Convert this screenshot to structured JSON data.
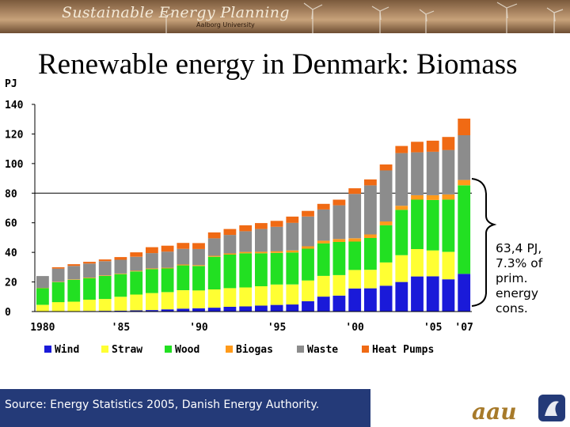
{
  "banner": {
    "title": "Sustainable Energy Planning",
    "subtitle": "Aalborg University"
  },
  "slide": {
    "title": "Renewable energy in Denmark: Biomass",
    "note": "63,4 PJ, 7.3% of prim. energy cons.",
    "source": "Source: Energy Statistics 2005, Danish Energy Authority."
  },
  "logo_text": "aau",
  "colors": {
    "banner": "#a88360",
    "footer": "#243a78",
    "wind": "#1a1ad9",
    "straw": "#ffff33",
    "wood": "#22e022",
    "biogas": "#ff9a1a",
    "waste": "#8c8c8c",
    "heat_pumps": "#f06a14"
  },
  "chart_data": {
    "type": "bar",
    "stacked": true,
    "ylabel": "PJ",
    "xlabel": "",
    "ylim": [
      0,
      140
    ],
    "yticks": [
      0,
      20,
      40,
      60,
      80,
      100,
      120,
      140
    ],
    "reference_line": 80,
    "grid": false,
    "legend_position": "bottom",
    "categories": [
      "1980",
      "1981",
      "1982",
      "1983",
      "1984",
      "1985",
      "1986",
      "1987",
      "1988",
      "1989",
      "1990",
      "1991",
      "1992",
      "1993",
      "1994",
      "1995",
      "1996",
      "1997",
      "1998",
      "1999",
      "2000",
      "2001",
      "2002",
      "2003",
      "2004",
      "2005",
      "2006",
      "2007"
    ],
    "x_tick_labels": [
      {
        "index": 0,
        "label": "1980"
      },
      {
        "index": 5,
        "label": "'85"
      },
      {
        "index": 10,
        "label": "'90"
      },
      {
        "index": 15,
        "label": "'95"
      },
      {
        "index": 20,
        "label": "'00"
      },
      {
        "index": 25,
        "label": "'05"
      },
      {
        "index": 27,
        "label": "'07"
      }
    ],
    "series": [
      {
        "name": "Wind",
        "color": "#1a1ad9",
        "values": [
          0.1,
          0.2,
          0.3,
          0.4,
          0.5,
          0.6,
          0.8,
          1.0,
          1.5,
          2.0,
          2.2,
          2.6,
          3.2,
          3.5,
          4.0,
          4.5,
          4.8,
          7.0,
          10.1,
          10.8,
          15.6,
          15.7,
          17.5,
          20.0,
          23.7,
          23.8,
          21.8,
          25.5
        ]
      },
      {
        "name": "Straw",
        "color": "#ffff33",
        "values": [
          4.4,
          6.2,
          6.4,
          7.6,
          8.0,
          9.4,
          10.7,
          11.5,
          11.6,
          12.4,
          12.1,
          12.4,
          12.6,
          12.8,
          13.1,
          13.8,
          13.5,
          14.0,
          14.0,
          13.8,
          12.5,
          12.5,
          15.7,
          18.1,
          18.5,
          17.5,
          18.5,
          0.0
        ]
      },
      {
        "name": "Wood",
        "color": "#22e022",
        "values": [
          11.3,
          13.5,
          14.8,
          14.6,
          15.6,
          15.3,
          15.6,
          16.2,
          16.0,
          16.8,
          16.5,
          22.0,
          22.7,
          23.1,
          22.3,
          21.3,
          21.6,
          21.5,
          22.0,
          22.4,
          19.2,
          21.5,
          25.1,
          30.6,
          33.4,
          34.1,
          35.4,
          59.8
        ]
      },
      {
        "name": "Biogas",
        "color": "#ff9a1a",
        "values": [
          0.2,
          0.2,
          0.3,
          0.4,
          0.4,
          0.4,
          0.5,
          0.5,
          0.5,
          0.6,
          0.6,
          0.7,
          0.8,
          0.9,
          1.0,
          1.2,
          1.4,
          1.6,
          1.8,
          2.0,
          2.2,
          2.4,
          2.6,
          2.8,
          3.0,
          3.2,
          3.4,
          3.6
        ]
      },
      {
        "name": "Waste",
        "color": "#8c8c8c",
        "values": [
          8.0,
          8.9,
          9.0,
          9.4,
          9.5,
          9.3,
          9.4,
          10.3,
          10.9,
          10.6,
          10.9,
          11.8,
          12.5,
          14.0,
          15.4,
          16.5,
          18.7,
          20.1,
          21.1,
          22.8,
          30.0,
          33.2,
          34.5,
          35.6,
          29.0,
          29.4,
          30.1,
          30.3
        ]
      },
      {
        "name": "Heat Pumps",
        "color": "#f06a14",
        "values": [
          0.0,
          0.9,
          1.2,
          1.2,
          1.2,
          1.8,
          3.0,
          4.0,
          4.0,
          4.0,
          4.0,
          4.0,
          4.0,
          4.0,
          4.0,
          4.0,
          4.2,
          3.8,
          3.8,
          3.8,
          3.8,
          4.0,
          4.0,
          4.8,
          7.1,
          7.5,
          8.8,
          11.2
        ]
      }
    ]
  }
}
